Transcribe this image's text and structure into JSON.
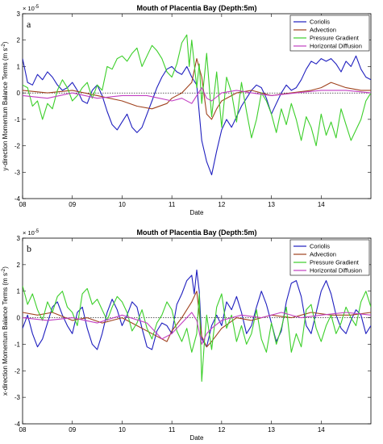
{
  "chart_data": [
    {
      "type": "line",
      "panel_label": "a",
      "title": "Mouth of Placentia Bay (Depth:5m)",
      "xlabel": "Date",
      "ylabel": "y-direction Momentum Balance Terms (m s",
      "ylabel_sup": "-2",
      "ylabel_close": ")",
      "exponent_base": "× 10",
      "exponent_power": "-5",
      "xlim": [
        8,
        15
      ],
      "ylim": [
        -4,
        3
      ],
      "xticks": [
        8,
        9,
        10,
        11,
        12,
        13,
        14
      ],
      "xtick_labels": [
        "08",
        "09",
        "10",
        "11",
        "12",
        "13",
        "14"
      ],
      "yticks": [
        -4,
        -3,
        -2,
        -1,
        0,
        1,
        2,
        3
      ],
      "ytick_labels": [
        "-4",
        "-3",
        "-2",
        "-1",
        "0",
        "1",
        "2",
        "3"
      ],
      "zero_line": "dotted",
      "legend_placement": "top-right",
      "series": [
        {
          "name": "Coriolis",
          "color": "#1f1fbf",
          "x": [
            8.0,
            8.1,
            8.2,
            8.3,
            8.4,
            8.5,
            8.6,
            8.7,
            8.8,
            8.9,
            9.0,
            9.1,
            9.2,
            9.3,
            9.4,
            9.5,
            9.6,
            9.7,
            9.8,
            9.9,
            10.0,
            10.1,
            10.2,
            10.3,
            10.4,
            10.5,
            10.6,
            10.7,
            10.8,
            10.9,
            11.0,
            11.1,
            11.2,
            11.3,
            11.4,
            11.5,
            11.6,
            11.7,
            11.8,
            11.9,
            12.0,
            12.1,
            12.2,
            12.3,
            12.4,
            12.5,
            12.6,
            12.7,
            12.8,
            12.9,
            13.0,
            13.1,
            13.2,
            13.3,
            13.4,
            13.5,
            13.6,
            13.7,
            13.8,
            13.9,
            14.0,
            14.1,
            14.2,
            14.3,
            14.4,
            14.5,
            14.6,
            14.7,
            14.8,
            14.9,
            15.0
          ],
          "y": [
            1.3,
            0.4,
            0.3,
            0.7,
            0.5,
            0.8,
            0.6,
            0.3,
            0.1,
            0.2,
            0.4,
            0.1,
            -0.3,
            -0.4,
            0.1,
            0.3,
            -0.1,
            -0.7,
            -1.2,
            -1.4,
            -1.1,
            -0.8,
            -1.3,
            -1.5,
            -1.3,
            -0.8,
            -0.3,
            0.2,
            0.6,
            0.9,
            1.0,
            0.8,
            0.7,
            1.0,
            0.6,
            0.3,
            -1.8,
            -2.6,
            -3.1,
            -2.2,
            -1.4,
            -1.0,
            -1.3,
            -0.9,
            -0.5,
            -0.2,
            0.1,
            0.3,
            0.2,
            -0.2,
            -0.8,
            -0.4,
            0.0,
            0.3,
            0.1,
            0.2,
            0.5,
            0.9,
            1.2,
            1.1,
            1.3,
            1.2,
            1.3,
            1.1,
            0.8,
            1.2,
            1.0,
            1.4,
            0.9,
            0.6,
            0.5
          ]
        },
        {
          "name": "Advection",
          "color": "#a0421e",
          "x": [
            8.0,
            8.5,
            9.0,
            9.5,
            10.0,
            10.3,
            10.6,
            10.9,
            11.0,
            11.2,
            11.4,
            11.5,
            11.6,
            11.7,
            11.8,
            11.9,
            12.0,
            12.3,
            12.6,
            13.0,
            13.4,
            13.8,
            14.0,
            14.2,
            14.5,
            14.8,
            15.0
          ],
          "y": [
            0.1,
            0.0,
            0.1,
            -0.1,
            -0.3,
            -0.5,
            -0.6,
            -0.4,
            -0.2,
            0.0,
            0.4,
            1.3,
            0.6,
            -0.8,
            -1.0,
            -0.6,
            -0.3,
            0.0,
            0.1,
            -0.1,
            0.0,
            0.1,
            0.2,
            0.4,
            0.2,
            0.1,
            0.1
          ]
        },
        {
          "name": "Pressure Gradient",
          "color": "#3ccf2a",
          "x": [
            8.0,
            8.1,
            8.2,
            8.3,
            8.4,
            8.5,
            8.6,
            8.7,
            8.8,
            8.9,
            9.0,
            9.1,
            9.2,
            9.3,
            9.4,
            9.5,
            9.6,
            9.7,
            9.8,
            9.9,
            10.0,
            10.1,
            10.2,
            10.3,
            10.4,
            10.5,
            10.6,
            10.7,
            10.8,
            10.9,
            11.0,
            11.1,
            11.2,
            11.3,
            11.35,
            11.4,
            11.5,
            11.55,
            11.6,
            11.7,
            11.8,
            11.9,
            12.0,
            12.1,
            12.2,
            12.3,
            12.4,
            12.5,
            12.6,
            12.7,
            12.8,
            12.9,
            13.0,
            13.1,
            13.2,
            13.3,
            13.4,
            13.5,
            13.6,
            13.7,
            13.8,
            13.9,
            14.0,
            14.1,
            14.2,
            14.3,
            14.4,
            14.5,
            14.6,
            14.7,
            14.8,
            14.9,
            15.0
          ],
          "y": [
            0.3,
            0.2,
            -0.5,
            -0.3,
            -1.0,
            -0.4,
            -0.6,
            0.1,
            0.5,
            0.2,
            -0.3,
            -0.1,
            0.2,
            0.4,
            -0.2,
            0.3,
            0.1,
            1.0,
            0.9,
            1.3,
            1.4,
            1.2,
            1.5,
            1.7,
            1.0,
            1.4,
            1.8,
            1.6,
            1.3,
            0.8,
            0.6,
            1.1,
            1.9,
            2.2,
            1.0,
            2.0,
            0.2,
            1.1,
            -0.4,
            1.5,
            -0.9,
            0.8,
            -1.3,
            0.6,
            0.0,
            -1.1,
            0.4,
            -0.7,
            -1.7,
            -1.0,
            0.0,
            -0.3,
            -0.8,
            -1.5,
            -0.6,
            -1.2,
            -0.4,
            -1.0,
            -1.8,
            -0.9,
            -1.3,
            -2.0,
            -0.8,
            -1.6,
            -1.1,
            -1.7,
            -0.6,
            -1.2,
            -1.8,
            -1.4,
            -1.0,
            -0.3,
            0.0
          ]
        },
        {
          "name": "Horizontal Diffusion",
          "color": "#c23fc2",
          "x": [
            8.0,
            8.5,
            9.0,
            9.5,
            10.0,
            10.5,
            11.0,
            11.2,
            11.4,
            11.5,
            11.6,
            11.7,
            11.8,
            12.0,
            12.3,
            12.6,
            13.0,
            13.5,
            14.0,
            14.5,
            15.0
          ],
          "y": [
            -0.1,
            -0.2,
            0.0,
            -0.2,
            -0.1,
            -0.1,
            -0.3,
            -0.2,
            -0.4,
            -0.1,
            0.2,
            -0.2,
            -0.3,
            0.0,
            0.1,
            0.0,
            -0.1,
            0.0,
            0.1,
            0.1,
            0.0
          ]
        }
      ]
    },
    {
      "type": "line",
      "panel_label": "b",
      "title": "Mouth of Placentia Bay (Depth:5m)",
      "xlabel": "Date",
      "ylabel": "x-direction Momentum Balance Terms (m s",
      "ylabel_sup": "-2",
      "ylabel_close": ")",
      "exponent_base": "× 10",
      "exponent_power": "-5",
      "xlim": [
        8,
        15
      ],
      "ylim": [
        -4,
        3
      ],
      "xticks": [
        8,
        9,
        10,
        11,
        12,
        13,
        14
      ],
      "xtick_labels": [
        "08",
        "09",
        "10",
        "11",
        "12",
        "13",
        "14"
      ],
      "yticks": [
        -4,
        -3,
        -2,
        -1,
        0,
        1,
        2,
        3
      ],
      "ytick_labels": [
        "-4",
        "-3",
        "-2",
        "-1",
        "0",
        "1",
        "2",
        "3"
      ],
      "zero_line": "dotted",
      "legend_placement": "top-right",
      "series": [
        {
          "name": "Coriolis",
          "color": "#1f1fbf",
          "x": [
            8.0,
            8.1,
            8.2,
            8.3,
            8.4,
            8.5,
            8.6,
            8.7,
            8.8,
            8.9,
            9.0,
            9.1,
            9.2,
            9.3,
            9.4,
            9.5,
            9.6,
            9.7,
            9.8,
            9.9,
            10.0,
            10.1,
            10.2,
            10.3,
            10.4,
            10.5,
            10.6,
            10.7,
            10.8,
            10.9,
            11.0,
            11.1,
            11.2,
            11.3,
            11.4,
            11.45,
            11.5,
            11.55,
            11.6,
            11.7,
            11.8,
            11.9,
            12.0,
            12.1,
            12.2,
            12.3,
            12.4,
            12.5,
            12.6,
            12.7,
            12.8,
            12.9,
            13.0,
            13.1,
            13.2,
            13.3,
            13.4,
            13.5,
            13.6,
            13.7,
            13.8,
            13.9,
            14.0,
            14.1,
            14.2,
            14.3,
            14.4,
            14.5,
            14.6,
            14.7,
            14.8,
            14.9,
            15.0
          ],
          "y": [
            -0.4,
            0.1,
            -0.6,
            -1.1,
            -0.8,
            -0.2,
            0.4,
            0.6,
            0.1,
            -0.3,
            -0.6,
            0.2,
            0.4,
            -0.4,
            -1.0,
            -1.2,
            -0.6,
            0.2,
            0.7,
            0.3,
            -0.3,
            0.1,
            0.6,
            0.4,
            -0.4,
            -1.1,
            -1.2,
            -0.5,
            -0.2,
            -0.3,
            -0.6,
            0.5,
            0.9,
            1.4,
            1.6,
            0.9,
            1.8,
            1.0,
            -0.8,
            -1.1,
            -0.3,
            0.1,
            -0.3,
            0.6,
            0.3,
            0.8,
            0.2,
            -0.6,
            -0.3,
            0.4,
            1.0,
            0.5,
            -0.2,
            -0.9,
            -0.5,
            0.6,
            1.3,
            1.4,
            0.8,
            -0.3,
            -0.6,
            0.2,
            1.0,
            1.4,
            0.9,
            0.1,
            -0.4,
            -0.6,
            -0.1,
            0.3,
            0.1,
            -0.6,
            -0.3
          ]
        },
        {
          "name": "Advection",
          "color": "#a0421e",
          "x": [
            8.0,
            8.3,
            8.6,
            9.0,
            9.3,
            9.6,
            10.0,
            10.3,
            10.6,
            10.9,
            11.0,
            11.2,
            11.4,
            11.5,
            11.6,
            11.7,
            11.8,
            12.0,
            12.3,
            12.6,
            13.0,
            13.4,
            13.8,
            14.2,
            14.6,
            15.0
          ],
          "y": [
            0.2,
            0.1,
            0.2,
            -0.1,
            0.0,
            -0.2,
            0.0,
            -0.3,
            -0.6,
            -0.9,
            -0.5,
            0.0,
            0.6,
            1.0,
            -0.7,
            -1.1,
            -0.9,
            -0.4,
            0.0,
            -0.1,
            0.1,
            0.0,
            0.2,
            0.1,
            0.1,
            0.2
          ]
        },
        {
          "name": "Pressure Gradient",
          "color": "#3ccf2a",
          "x": [
            8.0,
            8.1,
            8.2,
            8.3,
            8.4,
            8.5,
            8.6,
            8.7,
            8.8,
            8.9,
            9.0,
            9.1,
            9.2,
            9.3,
            9.4,
            9.5,
            9.6,
            9.7,
            9.8,
            9.9,
            10.0,
            10.1,
            10.2,
            10.3,
            10.4,
            10.5,
            10.6,
            10.7,
            10.8,
            10.9,
            11.0,
            11.1,
            11.2,
            11.3,
            11.4,
            11.5,
            11.55,
            11.6,
            11.65,
            11.7,
            11.8,
            11.9,
            12.0,
            12.1,
            12.2,
            12.3,
            12.4,
            12.5,
            12.6,
            12.7,
            12.8,
            12.9,
            13.0,
            13.1,
            13.2,
            13.3,
            13.4,
            13.5,
            13.6,
            13.7,
            13.8,
            13.9,
            14.0,
            14.1,
            14.2,
            14.3,
            14.4,
            14.5,
            14.6,
            14.7,
            14.8,
            14.9,
            15.0
          ],
          "y": [
            1.2,
            0.5,
            0.9,
            0.3,
            -0.1,
            0.6,
            0.2,
            0.8,
            1.0,
            0.4,
            0.2,
            -0.3,
            0.9,
            1.1,
            0.5,
            0.7,
            0.3,
            -0.1,
            0.4,
            0.8,
            0.6,
            0.2,
            -0.5,
            -0.2,
            0.3,
            -0.4,
            -0.8,
            -0.2,
            0.1,
            0.6,
            0.3,
            -0.5,
            -0.9,
            -0.4,
            -1.3,
            -0.6,
            0.9,
            -2.4,
            -1.0,
            0.1,
            -1.2,
            0.4,
            0.9,
            -0.4,
            0.1,
            -0.9,
            -0.3,
            -1.0,
            -0.6,
            0.3,
            -0.8,
            -1.3,
            -0.2,
            -1.0,
            -0.4,
            0.4,
            -1.3,
            -0.6,
            -1.1,
            0.3,
            0.5,
            -0.4,
            -0.9,
            -0.3,
            0.1,
            -0.6,
            -0.2,
            0.4,
            0.0,
            -0.3,
            0.6,
            1.0,
            0.4
          ]
        },
        {
          "name": "Horizontal Diffusion",
          "color": "#c23fc2",
          "x": [
            8.0,
            8.5,
            9.0,
            9.5,
            10.0,
            10.5,
            10.8,
            11.0,
            11.2,
            11.4,
            11.5,
            11.6,
            11.7,
            11.8,
            12.0,
            12.4,
            12.8,
            13.2,
            13.6,
            14.0,
            14.5,
            15.0
          ],
          "y": [
            0.0,
            -0.1,
            0.0,
            -0.2,
            0.1,
            -0.2,
            -0.8,
            -0.6,
            -0.2,
            0.2,
            -0.1,
            -1.0,
            -0.6,
            -0.4,
            -0.1,
            0.1,
            0.0,
            0.2,
            0.0,
            0.1,
            0.2,
            0.1
          ]
        }
      ]
    }
  ]
}
